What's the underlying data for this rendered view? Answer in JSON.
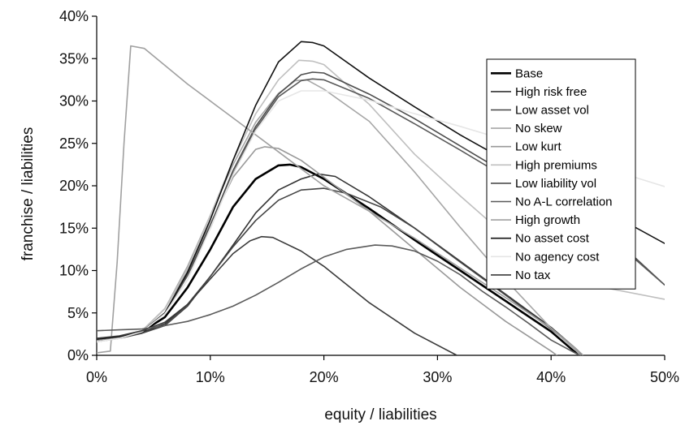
{
  "chart_data": {
    "type": "line",
    "title": "",
    "xlabel": "equity / liabilities",
    "ylabel": "franchise / liabilities",
    "xlim": [
      0,
      50
    ],
    "ylim": [
      0,
      40
    ],
    "x_ticks": [
      0,
      10,
      20,
      30,
      40,
      50
    ],
    "y_ticks": [
      0,
      5,
      10,
      15,
      20,
      25,
      30,
      35,
      40
    ],
    "x_tick_labels": [
      "0%",
      "10%",
      "20%",
      "30%",
      "40%",
      "50%"
    ],
    "y_tick_labels": [
      "0%",
      "5%",
      "10%",
      "15%",
      "20%",
      "25%",
      "30%",
      "35%",
      "40%"
    ],
    "grid": false,
    "legend_position": "right",
    "series": [
      {
        "name": "Base",
        "color": "#000000",
        "width": 2.6,
        "points": [
          [
            0,
            1.9
          ],
          [
            2,
            2.2
          ],
          [
            4,
            2.8
          ],
          [
            6,
            4.5
          ],
          [
            8,
            8.0
          ],
          [
            10,
            12.5
          ],
          [
            12,
            17.5
          ],
          [
            14,
            20.8
          ],
          [
            16,
            22.4
          ],
          [
            17,
            22.5
          ],
          [
            18,
            22.2
          ],
          [
            20,
            20.8
          ],
          [
            24,
            17.3
          ],
          [
            28,
            13.6
          ],
          [
            32,
            10.0
          ],
          [
            36,
            6.4
          ],
          [
            40,
            2.8
          ],
          [
            42,
            0.5
          ],
          [
            42.6,
            0
          ]
        ]
      },
      {
        "name": "High risk free",
        "color": "#333333",
        "width": 1.6,
        "points": [
          [
            0,
            2.0
          ],
          [
            2,
            2.2
          ],
          [
            4,
            2.7
          ],
          [
            6,
            3.7
          ],
          [
            8,
            6.0
          ],
          [
            10,
            9.3
          ],
          [
            12,
            13.0
          ],
          [
            14,
            16.8
          ],
          [
            16,
            19.5
          ],
          [
            18,
            20.8
          ],
          [
            19.5,
            21.4
          ],
          [
            21,
            21.1
          ],
          [
            24,
            18.7
          ],
          [
            28,
            15.0
          ],
          [
            32,
            11.1
          ],
          [
            36,
            7.2
          ],
          [
            40,
            3.3
          ],
          [
            42,
            1.0
          ],
          [
            42.8,
            0
          ]
        ]
      },
      {
        "name": "Low asset vol",
        "color": "#444444",
        "width": 1.6,
        "points": [
          [
            0,
            1.8
          ],
          [
            2,
            2.0
          ],
          [
            4,
            2.6
          ],
          [
            6,
            3.5
          ],
          [
            8,
            5.8
          ],
          [
            10,
            9.3
          ],
          [
            12,
            12.8
          ],
          [
            14,
            15.9
          ],
          [
            16,
            18.3
          ],
          [
            18,
            19.5
          ],
          [
            20,
            19.7
          ],
          [
            22,
            19.1
          ],
          [
            25,
            17.5
          ],
          [
            28,
            15.0
          ],
          [
            32,
            11.0
          ],
          [
            36,
            7.1
          ],
          [
            40,
            3.1
          ],
          [
            42,
            1.0
          ],
          [
            42.8,
            0
          ]
        ]
      },
      {
        "name": "No skew",
        "color": "#a6a6a6",
        "width": 1.6,
        "points": [
          [
            0,
            1.6
          ],
          [
            2,
            2.0
          ],
          [
            4,
            2.9
          ],
          [
            6,
            5.5
          ],
          [
            8,
            10.5
          ],
          [
            10,
            16.5
          ],
          [
            12,
            22.5
          ],
          [
            14,
            27.5
          ],
          [
            16,
            30.9
          ],
          [
            17.5,
            32.4
          ],
          [
            18.5,
            32.5
          ],
          [
            20,
            31.4
          ],
          [
            24,
            27.6
          ],
          [
            28,
            21.6
          ],
          [
            32,
            15.1
          ],
          [
            36,
            8.9
          ],
          [
            40,
            3.2
          ],
          [
            42,
            0.8
          ],
          [
            42.6,
            0
          ]
        ]
      },
      {
        "name": "Low kurt",
        "color": "#999999",
        "width": 1.6,
        "points": [
          [
            0,
            1.8
          ],
          [
            2,
            2.1
          ],
          [
            4,
            2.9
          ],
          [
            6,
            5.5
          ],
          [
            8,
            10.0
          ],
          [
            10,
            15.5
          ],
          [
            12,
            21.0
          ],
          [
            14,
            24.3
          ],
          [
            14.8,
            24.6
          ],
          [
            16,
            24.4
          ],
          [
            18,
            23.0
          ],
          [
            20,
            21.0
          ],
          [
            24,
            17.0
          ],
          [
            28,
            12.5
          ],
          [
            32,
            8.0
          ],
          [
            36,
            4.0
          ],
          [
            40,
            0.5
          ],
          [
            40.5,
            0
          ]
        ]
      },
      {
        "name": "High premiums",
        "color": "#bfbfbf",
        "width": 1.6,
        "points": [
          [
            0,
            1.6
          ],
          [
            2,
            2.0
          ],
          [
            4,
            2.9
          ],
          [
            6,
            5.5
          ],
          [
            8,
            10.2
          ],
          [
            10,
            16.5
          ],
          [
            12,
            23.0
          ],
          [
            14,
            28.5
          ],
          [
            16,
            32.5
          ],
          [
            17.8,
            34.8
          ],
          [
            19,
            34.7
          ],
          [
            20,
            34.3
          ],
          [
            24,
            29.6
          ],
          [
            28,
            23.7
          ],
          [
            32,
            18.8
          ],
          [
            36,
            14.1
          ],
          [
            40,
            9.5
          ],
          [
            45,
            7.9
          ],
          [
            50,
            6.6
          ]
        ]
      },
      {
        "name": "Low liability vol",
        "color": "#4d4d4d",
        "width": 1.6,
        "points": [
          [
            0,
            1.9
          ],
          [
            2,
            2.2
          ],
          [
            4,
            2.8
          ],
          [
            6,
            5.0
          ],
          [
            8,
            9.5
          ],
          [
            10,
            15.3
          ],
          [
            12,
            21.8
          ],
          [
            14,
            27.0
          ],
          [
            16,
            30.8
          ],
          [
            18,
            33.1
          ],
          [
            19,
            33.4
          ],
          [
            20,
            33.3
          ],
          [
            24,
            30.8
          ],
          [
            28,
            27.9
          ],
          [
            32,
            24.7
          ],
          [
            36,
            21.5
          ],
          [
            40,
            18.6
          ],
          [
            44,
            15.7
          ],
          [
            50,
            8.3
          ]
        ]
      },
      {
        "name": "No A-L correlation",
        "color": "#595959",
        "width": 1.6,
        "points": [
          [
            0,
            1.9
          ],
          [
            2,
            2.2
          ],
          [
            4,
            2.8
          ],
          [
            6,
            5.0
          ],
          [
            8,
            9.4
          ],
          [
            10,
            15.0
          ],
          [
            12,
            21.4
          ],
          [
            14,
            26.7
          ],
          [
            16,
            30.5
          ],
          [
            18,
            32.4
          ],
          [
            19,
            32.6
          ],
          [
            20,
            32.5
          ],
          [
            24,
            30.3
          ],
          [
            28,
            27.3
          ],
          [
            32,
            24.2
          ],
          [
            36,
            21.0
          ],
          [
            40,
            18.1
          ],
          [
            44,
            15.3
          ],
          [
            50,
            8.3
          ]
        ]
      },
      {
        "name": "High growth",
        "color": "#a0a0a0",
        "width": 1.6,
        "points": [
          [
            0,
            0.3
          ],
          [
            1.2,
            0.5
          ],
          [
            1.8,
            11.0
          ],
          [
            2.4,
            25.0
          ],
          [
            3.0,
            36.5
          ],
          [
            4.2,
            36.2
          ],
          [
            8,
            32.0
          ],
          [
            12,
            28.0
          ],
          [
            16,
            24.0
          ],
          [
            20,
            20.0
          ],
          [
            24,
            17.0
          ],
          [
            28,
            13.8
          ],
          [
            32,
            10.3
          ],
          [
            36,
            6.8
          ],
          [
            40,
            3.2
          ],
          [
            42,
            1.0
          ],
          [
            42.8,
            0
          ]
        ]
      },
      {
        "name": "No asset cost",
        "color": "#111111",
        "width": 1.6,
        "points": [
          [
            0,
            1.9
          ],
          [
            2,
            2.2
          ],
          [
            4,
            2.8
          ],
          [
            6,
            5.0
          ],
          [
            8,
            9.8
          ],
          [
            10,
            16.0
          ],
          [
            12,
            23.0
          ],
          [
            14,
            29.5
          ],
          [
            16,
            34.6
          ],
          [
            18,
            37.0
          ],
          [
            19,
            36.9
          ],
          [
            20,
            36.5
          ],
          [
            24,
            32.7
          ],
          [
            28,
            29.3
          ],
          [
            32,
            26.0
          ],
          [
            36,
            23.0
          ],
          [
            40,
            20.0
          ],
          [
            44,
            17.6
          ],
          [
            50,
            13.2
          ]
        ]
      },
      {
        "name": "No agency cost",
        "color": "#e6e6e6",
        "width": 1.6,
        "points": [
          [
            0,
            1.6
          ],
          [
            2,
            2.0
          ],
          [
            4,
            2.8
          ],
          [
            6,
            4.9
          ],
          [
            8,
            8.9
          ],
          [
            10,
            15.0
          ],
          [
            12,
            21.3
          ],
          [
            14,
            26.5
          ],
          [
            16,
            30.0
          ],
          [
            18,
            31.2
          ],
          [
            20,
            31.2
          ],
          [
            24,
            30.1
          ],
          [
            28,
            28.5
          ],
          [
            32,
            27.0
          ],
          [
            36,
            25.4
          ],
          [
            40,
            23.9
          ],
          [
            44,
            22.4
          ],
          [
            50,
            19.9
          ]
        ]
      },
      {
        "name": "No tax",
        "color": "#3a3a3a",
        "width": 1.6,
        "points": [
          [
            0,
            2.0
          ],
          [
            2,
            2.3
          ],
          [
            4,
            2.9
          ],
          [
            6,
            3.9
          ],
          [
            8,
            6.0
          ],
          [
            10,
            9.0
          ],
          [
            12,
            12.0
          ],
          [
            13.5,
            13.5
          ],
          [
            14.5,
            14.0
          ],
          [
            15.5,
            13.9
          ],
          [
            18,
            12.3
          ],
          [
            20,
            10.5
          ],
          [
            24,
            6.2
          ],
          [
            28,
            2.6
          ],
          [
            31.7,
            0
          ]
        ]
      },
      {
        "name": "",
        "color": "#5a5a5a",
        "width": 1.6,
        "points": [
          [
            0,
            2.9
          ],
          [
            2,
            3.0
          ],
          [
            4,
            3.1
          ],
          [
            6,
            3.5
          ],
          [
            8,
            4.0
          ],
          [
            10,
            4.8
          ],
          [
            12,
            5.8
          ],
          [
            14,
            7.1
          ],
          [
            16,
            8.6
          ],
          [
            18,
            10.2
          ],
          [
            20,
            11.6
          ],
          [
            22,
            12.5
          ],
          [
            24.5,
            13.0
          ],
          [
            26,
            12.9
          ],
          [
            28,
            12.3
          ],
          [
            30,
            11.1
          ],
          [
            32,
            9.5
          ],
          [
            34,
            7.5
          ],
          [
            36,
            5.7
          ],
          [
            38,
            3.8
          ],
          [
            40,
            1.8
          ],
          [
            42.5,
            0
          ]
        ]
      }
    ]
  }
}
